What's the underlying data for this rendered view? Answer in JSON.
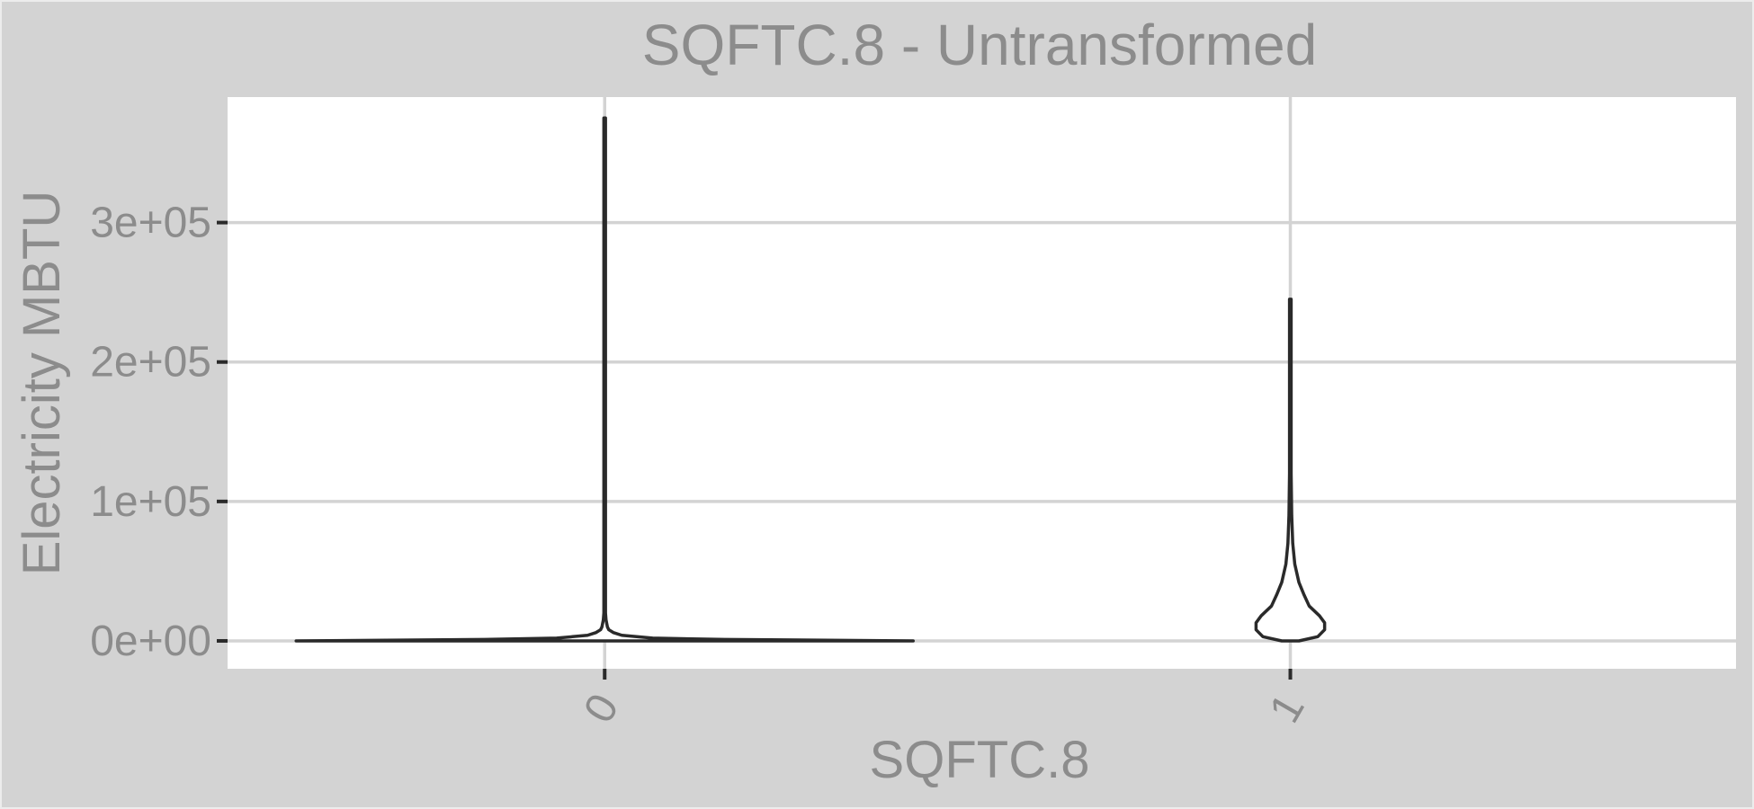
{
  "chart_data": {
    "type": "violin",
    "title": "SQFTC.8 - Untransformed",
    "xlabel": "SQFTC.8",
    "ylabel": "Electricity MBTU",
    "categories": [
      "0",
      "1"
    ],
    "ylim": [
      -20000,
      390000
    ],
    "y_ticks": [
      0,
      100000,
      200000,
      300000
    ],
    "y_tick_labels": [
      "0e+00",
      "1e+05",
      "2e+05",
      "3e+05"
    ],
    "grid": true,
    "background": "#d3d3d3",
    "panel_background": "#ffffff",
    "grid_color": "#d3d3d3",
    "violin_outline_color": "#2a2a2a",
    "violin_fill_color": "#ffffff",
    "series": [
      {
        "category": "0",
        "min": 0,
        "max": 375000,
        "density_profile": [
          [
            0,
            0.9
          ],
          [
            1000,
            0.35
          ],
          [
            2000,
            0.14
          ],
          [
            4000,
            0.05
          ],
          [
            6000,
            0.025
          ],
          [
            8000,
            0.012
          ],
          [
            10000,
            0.008
          ],
          [
            15000,
            0.004
          ],
          [
            20000,
            0.002
          ],
          [
            50000,
            0.0015
          ],
          [
            100000,
            0.001
          ],
          [
            150000,
            0.0008
          ],
          [
            200000,
            0.0005
          ],
          [
            300000,
            0.0004
          ],
          [
            375000,
            0.0003
          ]
        ]
      },
      {
        "category": "1",
        "min": 0,
        "max": 245000,
        "density_profile": [
          [
            0,
            0.025
          ],
          [
            3000,
            0.08
          ],
          [
            8000,
            0.1
          ],
          [
            13000,
            0.1
          ],
          [
            18000,
            0.085
          ],
          [
            25000,
            0.055
          ],
          [
            33000,
            0.04
          ],
          [
            42000,
            0.025
          ],
          [
            55000,
            0.013
          ],
          [
            70000,
            0.007
          ],
          [
            90000,
            0.004
          ],
          [
            120000,
            0.002
          ],
          [
            160000,
            0.0015
          ],
          [
            200000,
            0.001
          ],
          [
            245000,
            0.0008
          ]
        ]
      }
    ]
  }
}
